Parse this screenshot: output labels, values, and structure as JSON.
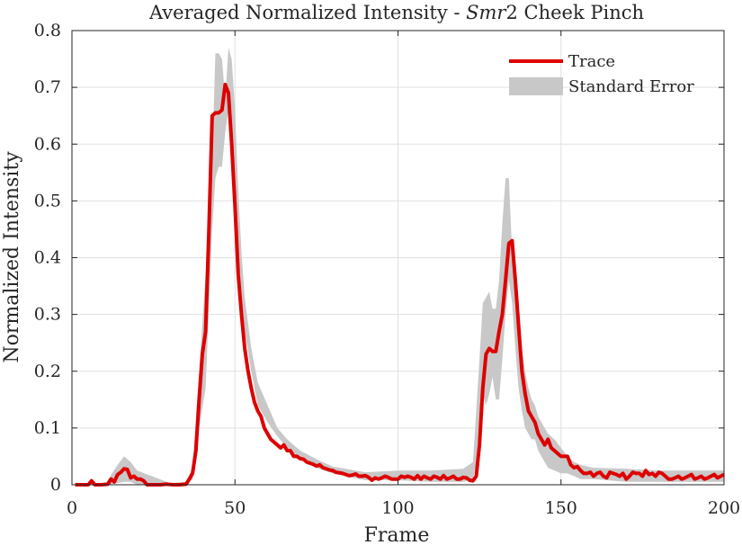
{
  "chart_data": {
    "type": "line",
    "title": "Averaged Normalized Intensity - ",
    "title_italic": "Smr",
    "title_suffix": "2 Cheek Pinch",
    "xlabel": "Frame",
    "ylabel": "Normalized Intensity",
    "xlim": [
      0,
      200
    ],
    "ylim": [
      0,
      0.8
    ],
    "xticks": [
      0,
      50,
      100,
      150,
      200
    ],
    "yticks": [
      0,
      0.1,
      0.2,
      0.3,
      0.4,
      0.5,
      0.6,
      0.7,
      0.8
    ],
    "xtick_labels": [
      "0",
      "50",
      "100",
      "150",
      "200"
    ],
    "ytick_labels": [
      "0",
      "0.1",
      "0.2",
      "0.3",
      "0.4",
      "0.5",
      "0.6",
      "0.7",
      "0.8"
    ],
    "grid": true,
    "legend_position": "top-right",
    "colors": {
      "trace": "#dd0000",
      "band": "#c8c8c8",
      "grid": "#e0e0e0"
    },
    "series": [
      {
        "name": "Trace",
        "x": [
          1,
          3,
          5,
          6,
          7,
          9,
          11,
          12,
          13,
          14,
          15,
          16,
          17,
          18,
          19,
          20,
          21,
          22,
          23,
          24,
          25,
          27,
          29,
          31,
          33,
          35,
          36,
          37,
          38,
          39,
          40,
          41,
          42,
          43,
          44,
          45,
          46,
          47,
          48,
          49,
          50,
          51,
          52,
          53,
          54,
          55,
          56,
          57,
          58,
          59,
          60,
          61,
          62,
          63,
          64,
          65,
          66,
          67,
          68,
          69,
          70,
          71,
          72,
          73,
          74,
          75,
          76,
          77,
          78,
          79,
          80,
          81,
          82,
          83,
          84,
          85,
          86,
          87,
          88,
          89,
          90,
          91,
          92,
          93,
          94,
          95,
          96,
          97,
          98,
          99,
          100,
          101,
          102,
          103,
          104,
          105,
          106,
          107,
          108,
          109,
          110,
          111,
          112,
          113,
          114,
          115,
          116,
          117,
          118,
          119,
          120,
          121,
          122,
          123,
          124,
          125,
          126,
          127,
          128,
          129,
          130,
          131,
          132,
          133,
          134,
          135,
          136,
          137,
          138,
          139,
          140,
          141,
          142,
          143,
          144,
          145,
          146,
          147,
          148,
          149,
          150,
          151,
          152,
          153,
          154,
          155,
          156,
          157,
          158,
          159,
          160,
          161,
          162,
          163,
          164,
          165,
          166,
          167,
          168,
          169,
          170,
          171,
          172,
          173,
          174,
          175,
          176,
          177,
          178,
          179,
          180,
          181,
          182,
          183,
          184,
          185,
          186,
          187,
          188,
          189,
          190,
          191,
          192,
          193,
          194,
          195,
          196,
          197,
          198,
          199,
          200
        ],
        "y": [
          0,
          0,
          0,
          0.007,
          0,
          0,
          0.001,
          0.01,
          0.005,
          0.018,
          0.022,
          0.028,
          0.027,
          0.012,
          0.015,
          0.01,
          0.01,
          0.007,
          0,
          0,
          0,
          0,
          0.001,
          0,
          0,
          0.001,
          0.01,
          0.02,
          0.06,
          0.15,
          0.23,
          0.27,
          0.45,
          0.65,
          0.655,
          0.655,
          0.66,
          0.705,
          0.69,
          0.6,
          0.49,
          0.37,
          0.3,
          0.24,
          0.2,
          0.17,
          0.145,
          0.13,
          0.12,
          0.1,
          0.09,
          0.08,
          0.075,
          0.07,
          0.065,
          0.07,
          0.06,
          0.06,
          0.05,
          0.05,
          0.046,
          0.045,
          0.04,
          0.038,
          0.036,
          0.033,
          0.035,
          0.03,
          0.028,
          0.026,
          0.025,
          0.022,
          0.021,
          0.02,
          0.018,
          0.016,
          0.017,
          0.019,
          0.015,
          0.015,
          0.016,
          0.013,
          0.008,
          0.012,
          0.01,
          0.012,
          0.015,
          0.013,
          0.01,
          0.01,
          0.01,
          0.015,
          0.013,
          0.015,
          0.013,
          0.01,
          0.016,
          0.01,
          0.015,
          0.012,
          0.01,
          0.015,
          0.013,
          0.01,
          0.016,
          0.01,
          0.012,
          0.015,
          0.01,
          0.01,
          0.013,
          0.012,
          0.008,
          0.007,
          0.015,
          0.07,
          0.17,
          0.23,
          0.24,
          0.235,
          0.235,
          0.27,
          0.3,
          0.36,
          0.425,
          0.43,
          0.36,
          0.28,
          0.2,
          0.16,
          0.13,
          0.12,
          0.11,
          0.09,
          0.08,
          0.07,
          0.08,
          0.065,
          0.06,
          0.055,
          0.05,
          0.05,
          0.05,
          0.035,
          0.03,
          0.032,
          0.025,
          0.02,
          0.02,
          0.022,
          0.015,
          0.02,
          0.022,
          0.015,
          0.012,
          0.022,
          0.02,
          0.018,
          0.015,
          0.02,
          0.01,
          0.015,
          0.022,
          0.02,
          0.02,
          0.015,
          0.025,
          0.018,
          0.02,
          0.015,
          0.022,
          0.02,
          0.015,
          0.01,
          0.01,
          0.012,
          0.015,
          0.01,
          0.012,
          0.015,
          0.018,
          0.01,
          0.012,
          0.015,
          0.01,
          0.012,
          0.015,
          0.018,
          0.012,
          0.015,
          0.018
        ]
      },
      {
        "name": "Standard Error",
        "x": [
          1,
          10,
          14,
          16,
          18,
          20,
          30,
          35,
          37,
          39,
          41,
          43,
          44,
          45,
          46,
          47,
          48,
          49,
          50,
          51,
          52,
          53,
          55,
          57,
          60,
          63,
          66,
          70,
          75,
          80,
          90,
          100,
          110,
          120,
          123,
          124,
          125,
          126,
          127,
          128,
          129,
          130,
          131,
          132,
          133,
          134,
          135,
          136,
          137,
          138,
          139,
          140,
          141,
          142,
          143,
          144,
          145,
          146,
          148,
          150,
          152,
          154,
          156,
          160,
          170,
          180,
          190,
          200
        ],
        "lower": [
          0,
          0,
          0.003,
          0.005,
          0.005,
          0,
          0,
          0,
          0.01,
          0.1,
          0.17,
          0.45,
          0.54,
          0.56,
          0.56,
          0.62,
          0.66,
          0.63,
          0.55,
          0.42,
          0.33,
          0.27,
          0.2,
          0.14,
          0.11,
          0.085,
          0.065,
          0.045,
          0.03,
          0.02,
          0.008,
          0.008,
          0.005,
          0.005,
          0.01,
          0.04,
          0.12,
          0.16,
          0.14,
          0.16,
          0.19,
          0.15,
          0.15,
          0.22,
          0.3,
          0.36,
          0.32,
          0.24,
          0.17,
          0.13,
          0.1,
          0.09,
          0.08,
          0.08,
          0.06,
          0.05,
          0.04,
          0.03,
          0.025,
          0.02,
          0.02,
          0.015,
          0.01,
          0.01,
          0.005,
          0.005,
          0.005,
          0.005
        ],
        "upper": [
          0,
          0,
          0.035,
          0.05,
          0.04,
          0.025,
          0.003,
          0.005,
          0.03,
          0.2,
          0.37,
          0.57,
          0.76,
          0.76,
          0.75,
          0.68,
          0.77,
          0.75,
          0.66,
          0.52,
          0.41,
          0.33,
          0.24,
          0.18,
          0.14,
          0.1,
          0.08,
          0.06,
          0.045,
          0.032,
          0.022,
          0.025,
          0.025,
          0.028,
          0.04,
          0.13,
          0.22,
          0.32,
          0.33,
          0.34,
          0.31,
          0.31,
          0.36,
          0.46,
          0.54,
          0.54,
          0.41,
          0.33,
          0.27,
          0.24,
          0.2,
          0.17,
          0.15,
          0.14,
          0.12,
          0.11,
          0.1,
          0.09,
          0.08,
          0.065,
          0.05,
          0.04,
          0.035,
          0.03,
          0.028,
          0.025,
          0.025,
          0.025
        ]
      }
    ]
  }
}
